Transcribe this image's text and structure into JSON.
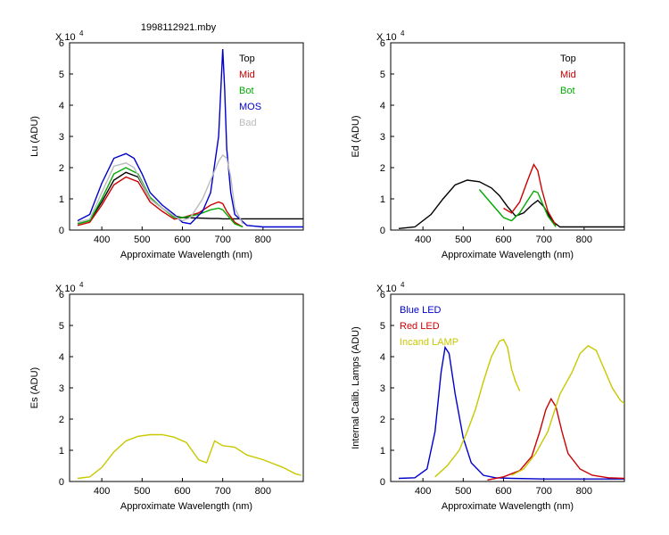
{
  "figure_title": "1998112921.mby",
  "chart_data": [
    {
      "type": "line",
      "id": "lu",
      "xlabel": "Approximate Wavelength (nm)",
      "ylabel": "Lu (ADU)",
      "exponent_label": "X 10",
      "exponent_power": "4",
      "xlim": [
        320,
        900
      ],
      "ylim": [
        0,
        6
      ],
      "xticks": [
        400,
        500,
        600,
        700,
        800
      ],
      "yticks": [
        0,
        1,
        2,
        3,
        4,
        5,
        6
      ],
      "legend": "top-right",
      "series": [
        {
          "name": "Top",
          "color": "#000000",
          "x": [
            340,
            370,
            400,
            430,
            460,
            490,
            520,
            550,
            580,
            600,
            650,
            670,
            690,
            700,
            710,
            730,
            750,
            800,
            850,
            900
          ],
          "y": [
            0.2,
            0.3,
            0.9,
            1.6,
            1.85,
            1.7,
            1.0,
            0.7,
            0.45,
            0.4,
            0.38,
            0.37,
            0.37,
            0.36,
            0.36,
            0.36,
            0.36,
            0.36,
            0.36,
            0.36
          ]
        },
        {
          "name": "Mid",
          "color": "#cc0000",
          "x": [
            340,
            370,
            400,
            430,
            460,
            490,
            520,
            550,
            580,
            600,
            640,
            670,
            690,
            700,
            710,
            730,
            750
          ],
          "y": [
            0.15,
            0.25,
            0.8,
            1.45,
            1.7,
            1.55,
            0.9,
            0.6,
            0.35,
            0.4,
            0.55,
            0.8,
            0.9,
            0.85,
            0.6,
            0.25,
            0.1
          ]
        },
        {
          "name": "Bot",
          "color": "#00aa00",
          "x": [
            340,
            370,
            400,
            430,
            460,
            490,
            520,
            550,
            580,
            600,
            640,
            670,
            690,
            700,
            710,
            730,
            750
          ],
          "y": [
            0.2,
            0.3,
            1.0,
            1.8,
            2.0,
            1.8,
            1.05,
            0.7,
            0.4,
            0.4,
            0.5,
            0.65,
            0.7,
            0.65,
            0.5,
            0.2,
            0.1
          ]
        },
        {
          "name": "MOS",
          "color": "#0000cc",
          "x": [
            340,
            370,
            400,
            430,
            460,
            480,
            500,
            520,
            550,
            580,
            600,
            620,
            650,
            670,
            690,
            700,
            705,
            710,
            720,
            730,
            760,
            800,
            850,
            900
          ],
          "y": [
            0.3,
            0.5,
            1.5,
            2.3,
            2.45,
            2.3,
            1.8,
            1.2,
            0.8,
            0.5,
            0.25,
            0.2,
            0.6,
            1.2,
            3.0,
            5.8,
            4.5,
            2.6,
            1.2,
            0.5,
            0.15,
            0.1,
            0.1,
            0.1
          ]
        },
        {
          "name": "Bad",
          "color": "#bbbbbb",
          "x": [
            340,
            370,
            400,
            430,
            460,
            480,
            500,
            520,
            550,
            580,
            600,
            620,
            650,
            670,
            690,
            700,
            710,
            720,
            730,
            750
          ],
          "y": [
            0.25,
            0.35,
            1.2,
            2.05,
            2.15,
            2.0,
            1.5,
            1.0,
            0.7,
            0.45,
            0.3,
            0.4,
            1.0,
            1.6,
            2.2,
            2.4,
            2.3,
            1.7,
            0.7,
            0.2
          ]
        }
      ]
    },
    {
      "type": "line",
      "id": "ed",
      "xlabel": "Approximate Wavelength (nm)",
      "ylabel": "Ed  (ADU)",
      "exponent_label": "X 10",
      "exponent_power": "4",
      "xlim": [
        320,
        900
      ],
      "ylim": [
        0,
        6
      ],
      "xticks": [
        400,
        500,
        600,
        700,
        800
      ],
      "yticks": [
        0,
        1,
        2,
        3,
        4,
        5,
        6
      ],
      "legend": "top-right",
      "series": [
        {
          "name": "Top",
          "color": "#000000",
          "x": [
            340,
            380,
            420,
            450,
            480,
            510,
            540,
            570,
            590,
            610,
            630,
            650,
            670,
            685,
            700,
            720,
            740,
            800,
            850,
            900
          ],
          "y": [
            0.05,
            0.1,
            0.5,
            1.0,
            1.45,
            1.6,
            1.55,
            1.35,
            1.1,
            0.75,
            0.45,
            0.55,
            0.8,
            0.95,
            0.75,
            0.3,
            0.1,
            0.1,
            0.1,
            0.1
          ]
        },
        {
          "name": "Mid",
          "color": "#cc0000",
          "x": [
            600,
            620,
            640,
            660,
            675,
            685,
            695,
            710,
            730
          ],
          "y": [
            0.7,
            0.55,
            0.9,
            1.6,
            2.1,
            1.9,
            1.3,
            0.6,
            0.15
          ]
        },
        {
          "name": "Bot",
          "color": "#00aa00",
          "x": [
            540,
            560,
            580,
            600,
            620,
            640,
            660,
            675,
            685,
            695,
            710,
            730
          ],
          "y": [
            1.3,
            1.0,
            0.7,
            0.4,
            0.3,
            0.55,
            0.95,
            1.25,
            1.2,
            0.9,
            0.45,
            0.1
          ]
        }
      ]
    },
    {
      "type": "line",
      "id": "es",
      "xlabel": "Approximate Wavelength (nm)",
      "ylabel": "Es  (ADU)",
      "exponent_label": "X 10",
      "exponent_power": "4",
      "xlim": [
        320,
        900
      ],
      "ylim": [
        0,
        6
      ],
      "xticks": [
        400,
        500,
        600,
        700,
        800
      ],
      "yticks": [
        0,
        1,
        2,
        3,
        4,
        5,
        6
      ],
      "legend": "none",
      "series": [
        {
          "name": "Es",
          "color": "#c8c800",
          "x": [
            340,
            370,
            400,
            430,
            460,
            490,
            520,
            550,
            580,
            610,
            640,
            660,
            680,
            700,
            730,
            760,
            800,
            850,
            880,
            895
          ],
          "y": [
            0.1,
            0.15,
            0.45,
            0.95,
            1.3,
            1.45,
            1.5,
            1.5,
            1.42,
            1.25,
            0.7,
            0.6,
            1.3,
            1.15,
            1.1,
            0.85,
            0.7,
            0.45,
            0.25,
            0.2
          ]
        }
      ]
    },
    {
      "type": "line",
      "id": "calib",
      "xlabel": "Approximate Wavelength (nm)",
      "ylabel": "Internal Calib. Lamps (ADU)",
      "exponent_label": "X 10",
      "exponent_power": "4",
      "xlim": [
        320,
        900
      ],
      "ylim": [
        0,
        6
      ],
      "xticks": [
        400,
        500,
        600,
        700,
        800
      ],
      "yticks": [
        0,
        1,
        2,
        3,
        4,
        5,
        6
      ],
      "legend": "top-left",
      "series": [
        {
          "name": "Blue LED",
          "color": "#0000cc",
          "x": [
            340,
            380,
            410,
            430,
            445,
            455,
            465,
            480,
            500,
            520,
            550,
            580,
            620,
            700,
            800,
            900
          ],
          "y": [
            0.1,
            0.12,
            0.4,
            1.6,
            3.5,
            4.3,
            4.1,
            2.8,
            1.4,
            0.6,
            0.2,
            0.12,
            0.1,
            0.08,
            0.08,
            0.08
          ]
        },
        {
          "name": "Red LED",
          "color": "#cc0000",
          "x": [
            560,
            600,
            640,
            670,
            690,
            705,
            718,
            730,
            745,
            760,
            790,
            820,
            860,
            900
          ],
          "y": [
            0.05,
            0.15,
            0.35,
            0.8,
            1.6,
            2.3,
            2.65,
            2.4,
            1.6,
            0.9,
            0.4,
            0.2,
            0.12,
            0.1
          ]
        },
        {
          "name": "Incand LAMP",
          "color": "#c8c800",
          "x": [
            430,
            460,
            490,
            510,
            530,
            550,
            570,
            590,
            600,
            610,
            620,
            630,
            640
          ],
          "x2": [
            620,
            650,
            680,
            710,
            740,
            770,
            790,
            810,
            830,
            850,
            870,
            890,
            900
          ],
          "y": [
            0.15,
            0.5,
            1.0,
            1.6,
            2.3,
            3.2,
            4.0,
            4.5,
            4.55,
            4.3,
            3.6,
            3.2,
            2.9
          ],
          "y2": [
            0.2,
            0.4,
            0.9,
            1.6,
            2.8,
            3.5,
            4.1,
            4.35,
            4.2,
            3.6,
            3.0,
            2.6,
            2.5
          ]
        }
      ]
    }
  ]
}
